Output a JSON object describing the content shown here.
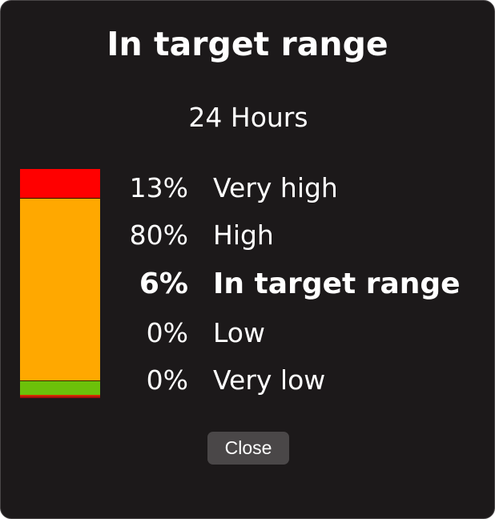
{
  "dialog": {
    "title": "In target range",
    "period": "24 Hours",
    "close_label": "Close"
  },
  "ranges": [
    {
      "key": "very_high",
      "percent_label": "13%",
      "label": "Very high",
      "color": "#ff0000",
      "share": 0.13
    },
    {
      "key": "high",
      "percent_label": "80%",
      "label": "High",
      "color": "#ffa800",
      "share": 0.8
    },
    {
      "key": "in_range",
      "percent_label": "6%",
      "label": "In target range",
      "color": "#6cc10a",
      "share": 0.06,
      "highlight": true
    },
    {
      "key": "low",
      "percent_label": "0%",
      "label": "Low",
      "color": "#d42a00",
      "share": 0.005
    },
    {
      "key": "very_low",
      "percent_label": "0%",
      "label": "Very low",
      "color": "#a01010",
      "share": 0.005
    }
  ]
}
